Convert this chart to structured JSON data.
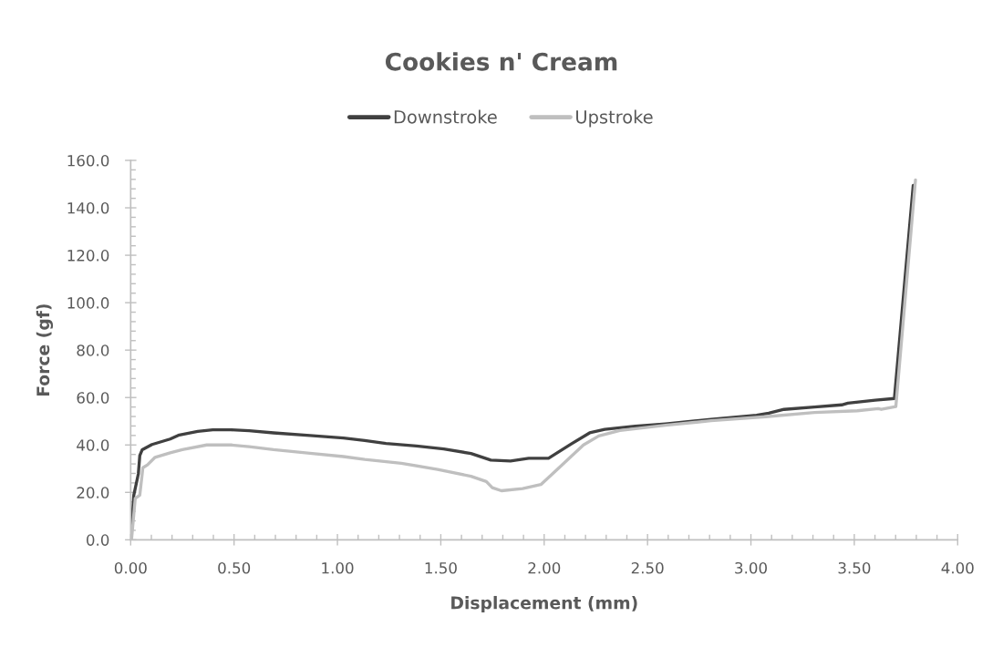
{
  "chart_data": {
    "type": "line",
    "title": "Cookies n' Cream",
    "xlabel": "Displacement (mm)",
    "ylabel": "Force (gf)",
    "xlim": [
      0,
      4
    ],
    "ylim": [
      0,
      160
    ],
    "xticks": [
      {
        "value": 0,
        "label": "0.00"
      },
      {
        "value": 0.5,
        "label": "0.50"
      },
      {
        "value": 1,
        "label": "1.00"
      },
      {
        "value": 1.5,
        "label": "1.50"
      },
      {
        "value": 2,
        "label": "2.00"
      },
      {
        "value": 2.5,
        "label": "2.50"
      },
      {
        "value": 3,
        "label": "3.00"
      },
      {
        "value": 3.5,
        "label": "3.50"
      },
      {
        "value": 4,
        "label": "4.00"
      }
    ],
    "yticks": [
      {
        "value": 0,
        "label": "0.0"
      },
      {
        "value": 20,
        "label": "20.0"
      },
      {
        "value": 40,
        "label": "40.0"
      },
      {
        "value": 60,
        "label": "60.0"
      },
      {
        "value": 80,
        "label": "80.0"
      },
      {
        "value": 100,
        "label": "100.0"
      },
      {
        "value": 120,
        "label": "120.0"
      },
      {
        "value": 140,
        "label": "140.0"
      },
      {
        "value": 160,
        "label": "160.0"
      }
    ],
    "series": [
      {
        "name": "Downstroke",
        "color": "#404040",
        "x": [
          0.0,
          0.015,
          0.037,
          0.044,
          0.056,
          0.103,
          0.191,
          0.235,
          0.324,
          0.397,
          0.485,
          0.573,
          0.691,
          0.867,
          1.029,
          1.132,
          1.235,
          1.382,
          1.514,
          1.646,
          1.742,
          1.837,
          1.925,
          2.021,
          2.131,
          2.22,
          2.293,
          2.44,
          2.587,
          2.807,
          3.027,
          3.086,
          3.16,
          3.307,
          3.439,
          3.469,
          3.601,
          3.694,
          3.785
        ],
        "values": [
          0.0,
          18.8,
          27.8,
          35.5,
          38.0,
          40.2,
          42.5,
          44.2,
          45.7,
          46.4,
          46.4,
          46.0,
          45.1,
          44.0,
          42.9,
          41.9,
          40.6,
          39.6,
          38.3,
          36.4,
          33.6,
          33.2,
          34.4,
          34.4,
          40.4,
          45.1,
          46.6,
          47.9,
          48.9,
          50.8,
          52.5,
          53.4,
          55.0,
          56.0,
          56.9,
          57.6,
          58.9,
          59.6,
          149.5
        ]
      },
      {
        "name": "Upstroke",
        "color": "#bfbfbf",
        "x": [
          0.004,
          0.022,
          0.044,
          0.059,
          0.081,
          0.118,
          0.191,
          0.25,
          0.368,
          0.485,
          0.573,
          0.691,
          0.867,
          1.029,
          1.132,
          1.309,
          1.485,
          1.646,
          1.72,
          1.749,
          1.793,
          1.896,
          1.984,
          2.072,
          2.19,
          2.264,
          2.366,
          2.587,
          2.807,
          3.072,
          3.307,
          3.514,
          3.616,
          3.631,
          3.701,
          3.796
        ],
        "values": [
          0.0,
          17.5,
          18.8,
          30.4,
          31.6,
          34.8,
          36.7,
          38.0,
          40.0,
          40.0,
          39.3,
          38.0,
          36.5,
          35.1,
          33.9,
          32.3,
          29.7,
          26.8,
          24.6,
          22.0,
          20.7,
          21.6,
          23.3,
          30.4,
          40.0,
          43.8,
          46.1,
          48.3,
          50.2,
          51.9,
          53.7,
          54.4,
          55.3,
          55.0,
          56.2,
          151.8
        ]
      }
    ],
    "legend": "top",
    "grid": false,
    "line_style": "solid"
  }
}
